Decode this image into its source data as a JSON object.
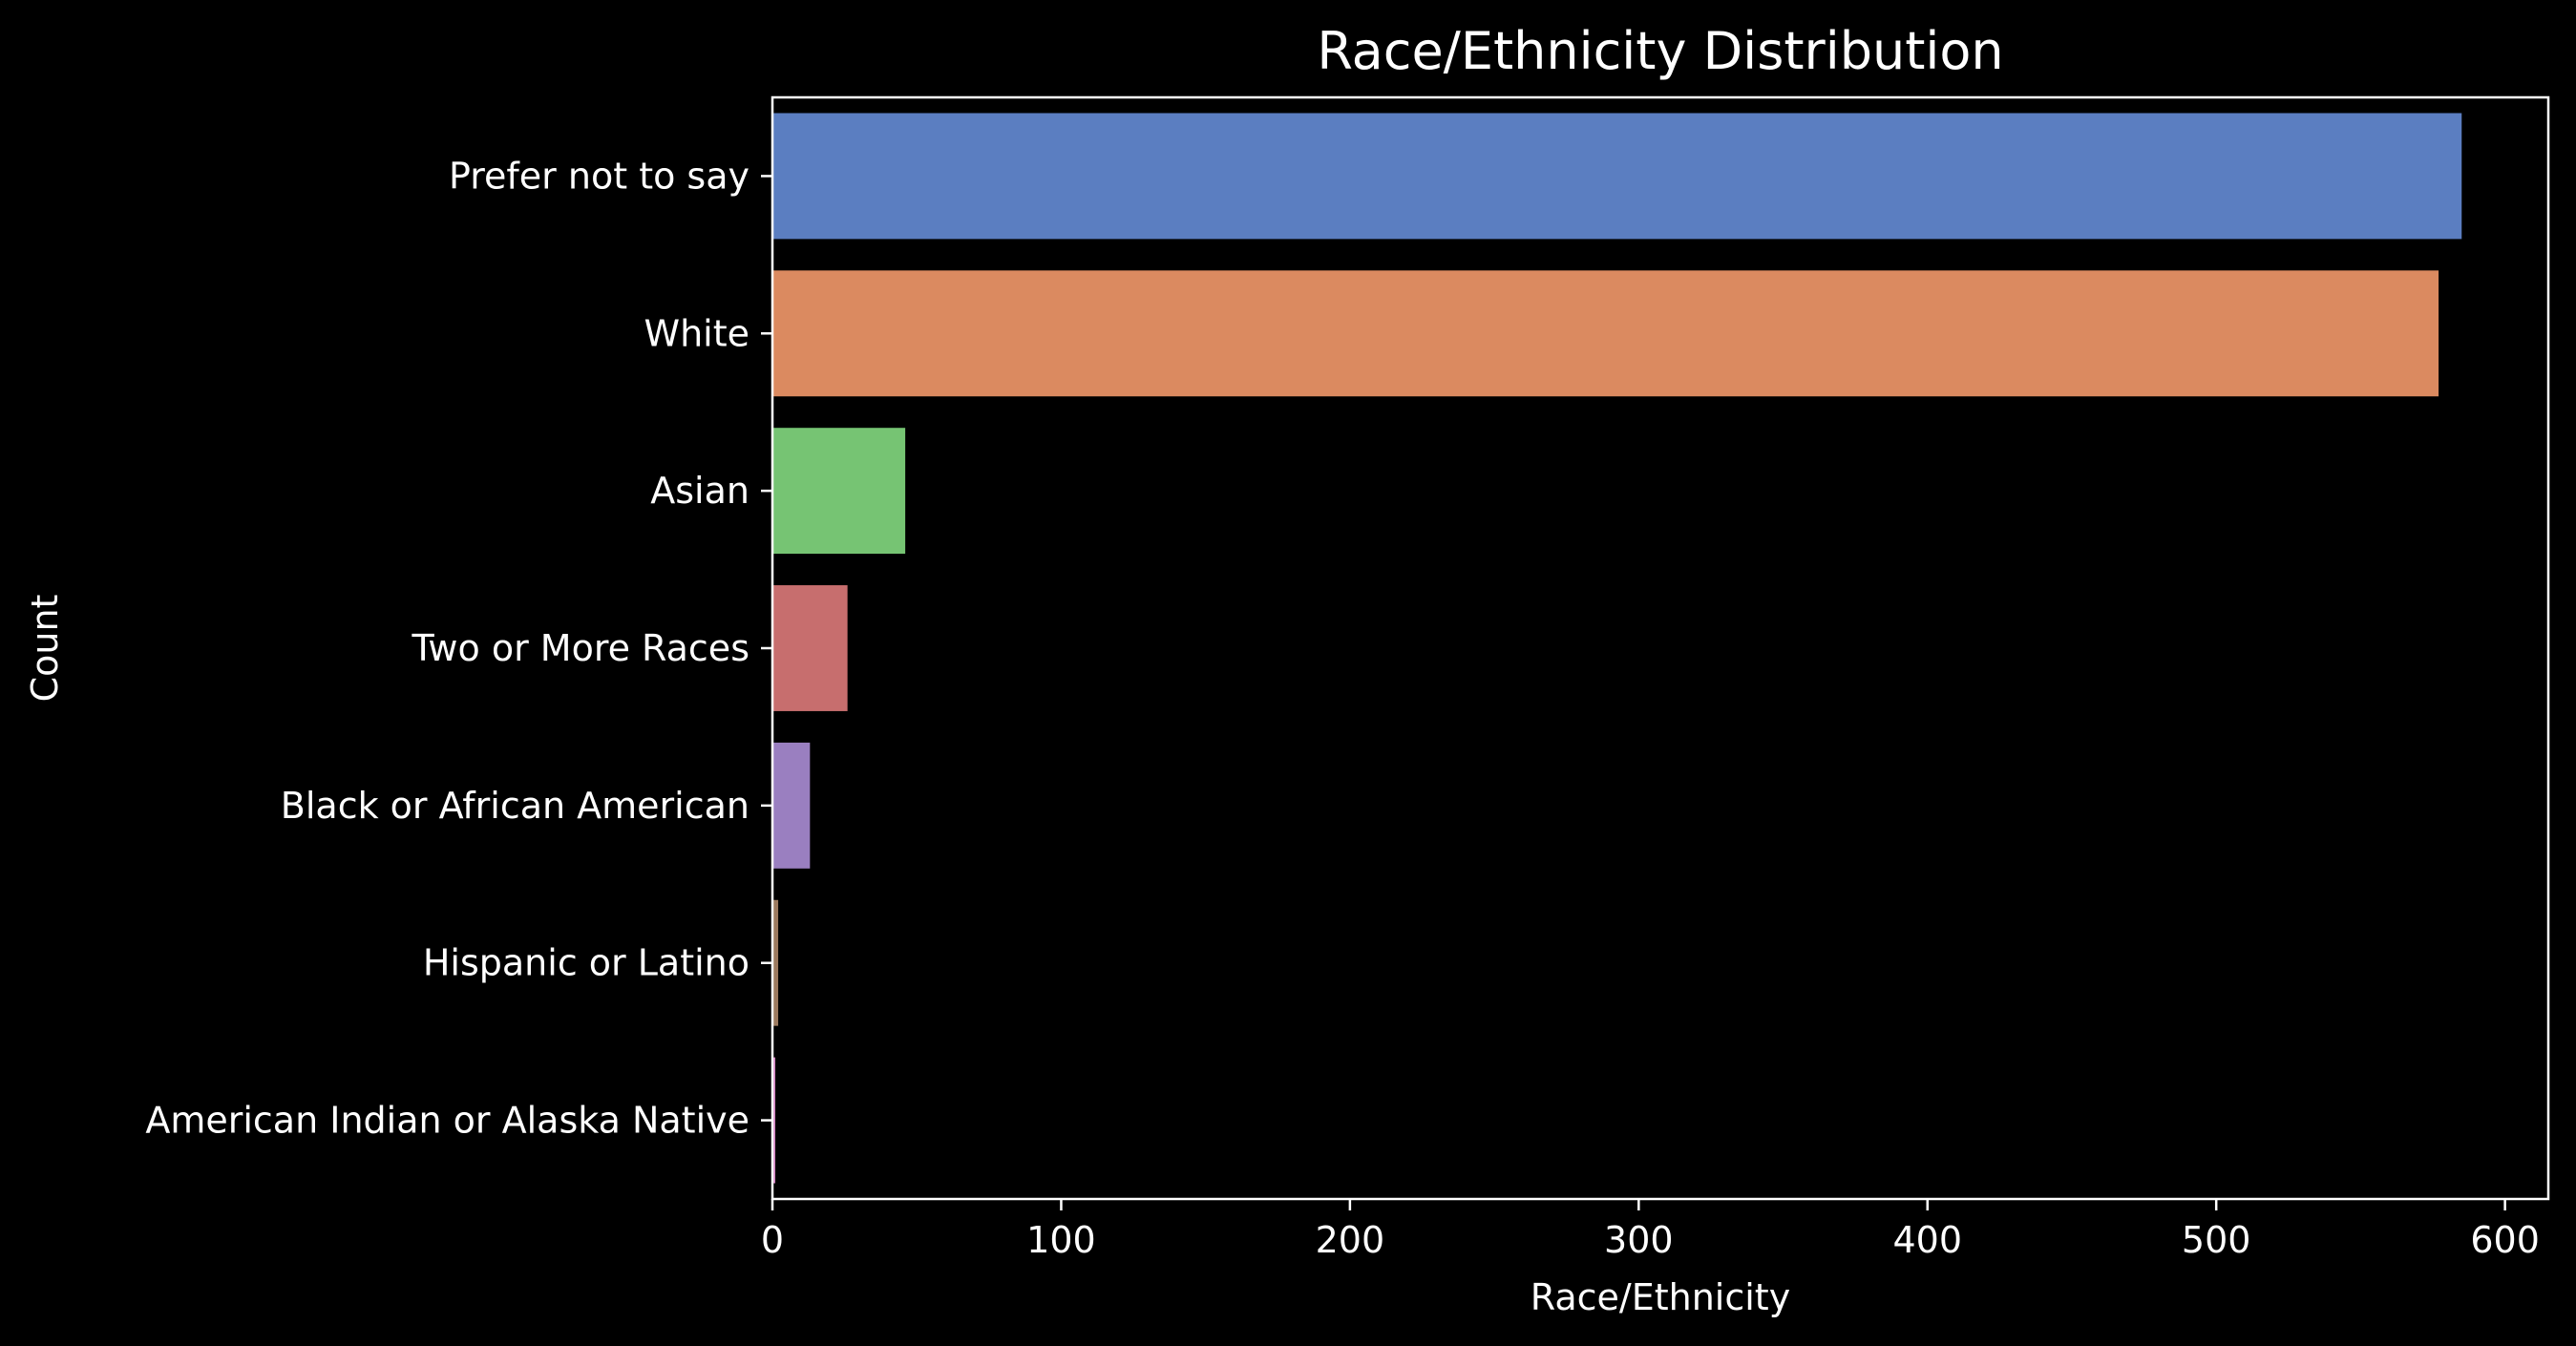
{
  "chart_data": {
    "type": "bar",
    "orientation": "horizontal",
    "title": "Race/Ethnicity Distribution",
    "xlabel": "Race/Ethnicity",
    "ylabel": "Count",
    "xlim": [
      0,
      615
    ],
    "xticks": [
      "0",
      "100",
      "200",
      "300",
      "400",
      "500",
      "600"
    ],
    "categories": [
      "Prefer not to say",
      "White",
      "Asian",
      "Two or More Races",
      "Black or African American",
      "Hispanic or Latino",
      "American Indian or Alaska Native"
    ],
    "values": [
      585,
      577,
      46,
      26,
      13,
      2,
      1
    ],
    "colors": [
      "#5b7ec1",
      "#db8a60",
      "#76c473",
      "#c76e6e",
      "#9a7fc0",
      "#9c7a5f",
      "#d286c2"
    ],
    "background": "#000000",
    "foreground": "#ffffff",
    "grid": false,
    "legend": "none"
  }
}
